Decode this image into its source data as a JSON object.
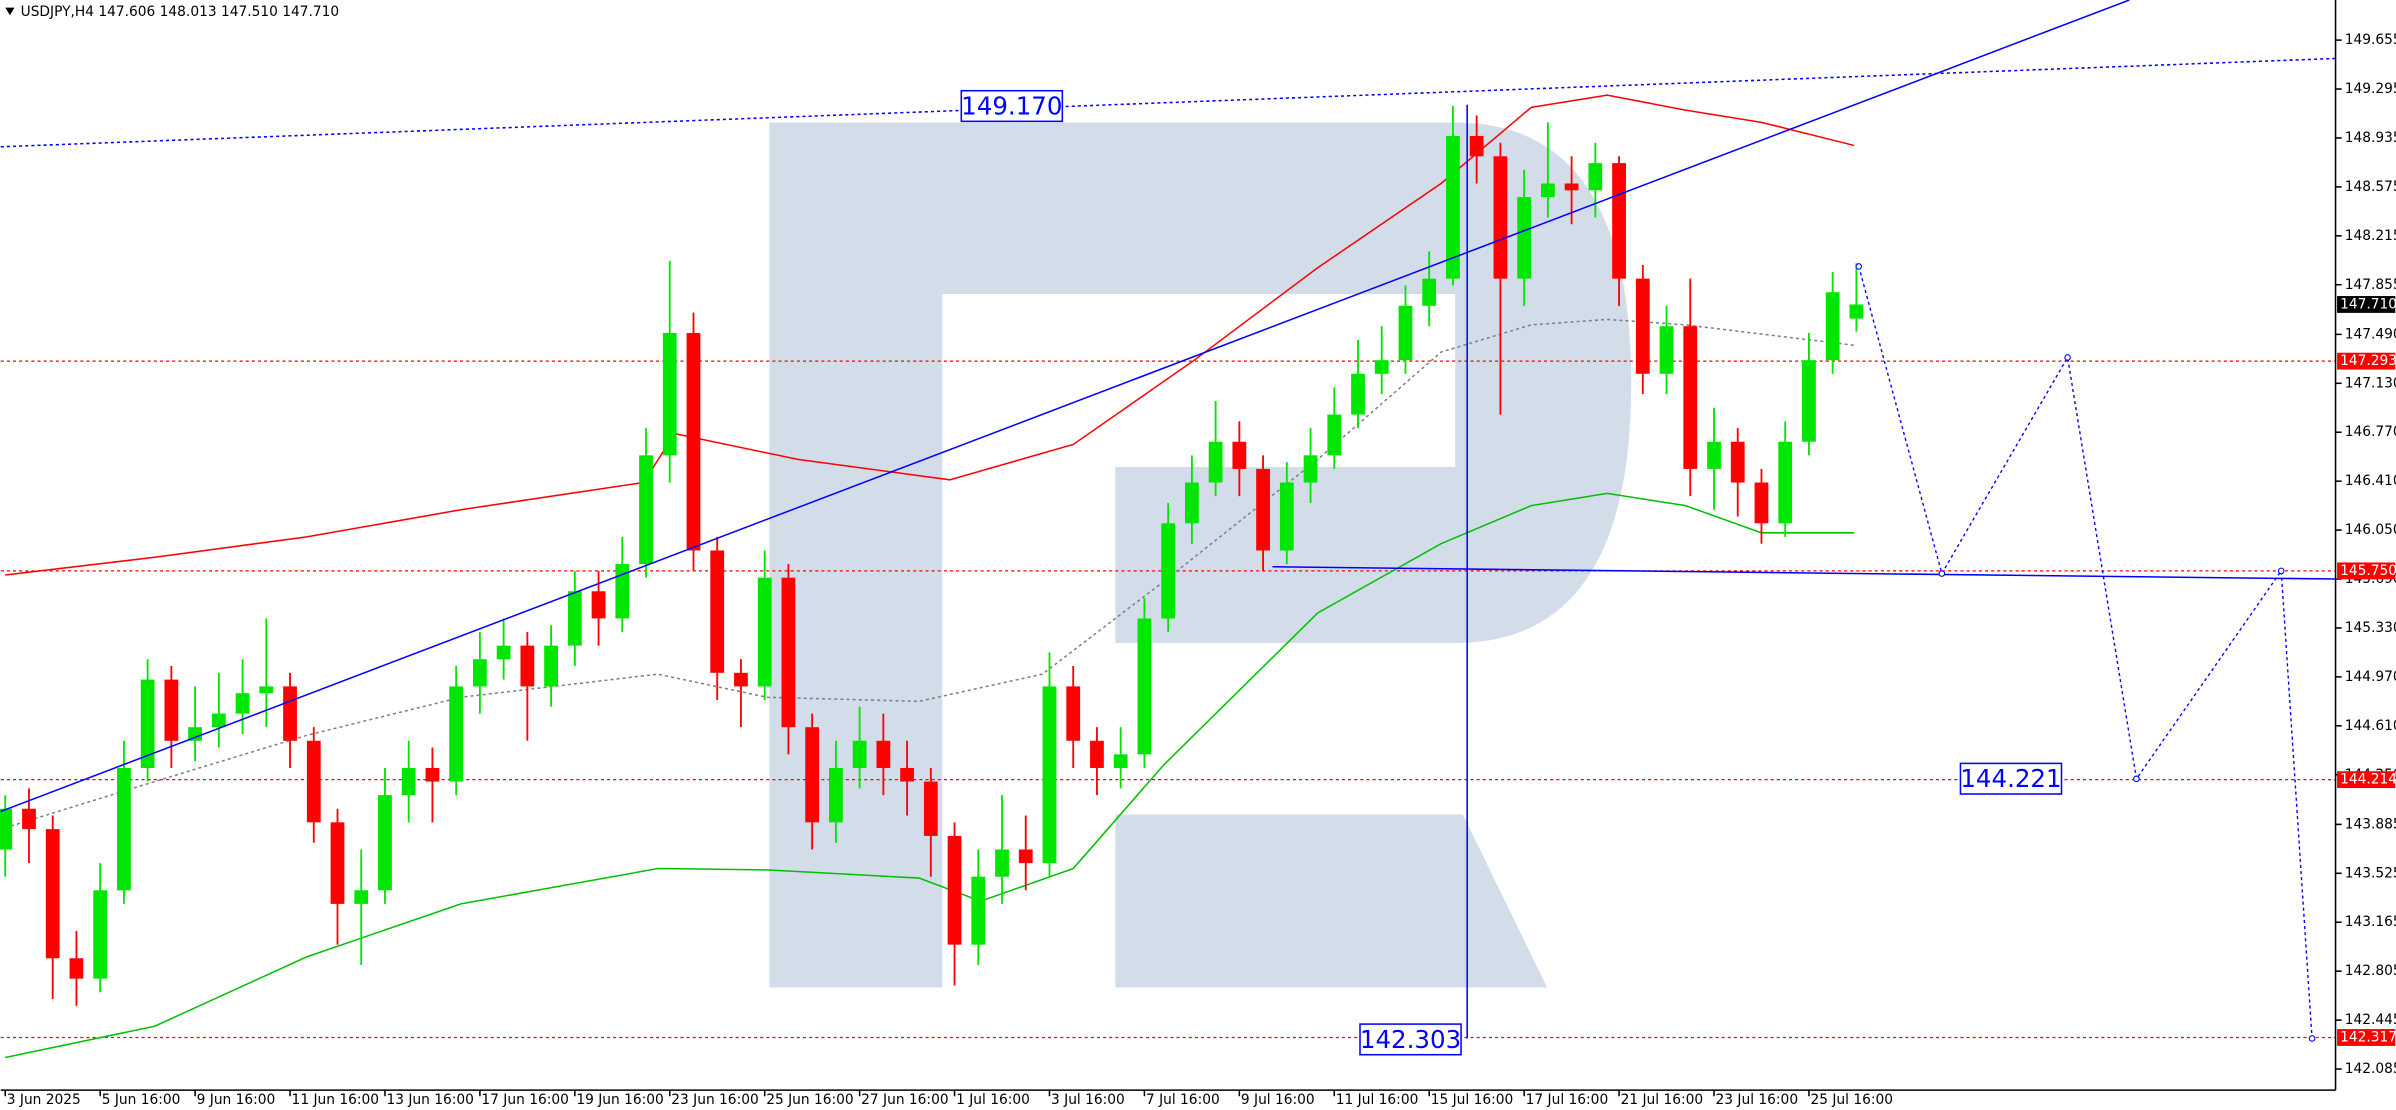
{
  "chart_data": {
    "type": "candlestick",
    "title": "USDJPY,H4  147.606 148.013 147.510 147.710",
    "xlim": [
      -0.19,
      98.19
    ],
    "ylim": [
      141.93,
      149.95
    ],
    "xticks": [
      {
        "value": 0,
        "label": "3 Jun 2025"
      },
      {
        "value": 4,
        "label": "5 Jun 16:00"
      },
      {
        "value": 8,
        "label": "9 Jun 16:00"
      },
      {
        "value": 12,
        "label": "11 Jun 16:00"
      },
      {
        "value": 16,
        "label": "13 Jun 16:00"
      },
      {
        "value": 20,
        "label": "17 Jun 16:00"
      },
      {
        "value": 24,
        "label": "19 Jun 16:00"
      },
      {
        "value": 28,
        "label": "23 Jun 16:00"
      },
      {
        "value": 32,
        "label": "25 Jun 16:00"
      },
      {
        "value": 36,
        "label": "27 Jun 16:00"
      },
      {
        "value": 40,
        "label": "1 Jul 16:00"
      },
      {
        "value": 44,
        "label": "3 Jul 16:00"
      },
      {
        "value": 48,
        "label": "7 Jul 16:00"
      },
      {
        "value": 52,
        "label": "9 Jul 16:00"
      },
      {
        "value": 56,
        "label": "11 Jul 16:00"
      },
      {
        "value": 60,
        "label": "15 Jul 16:00"
      },
      {
        "value": 64,
        "label": "17 Jul 16:00"
      },
      {
        "value": 68,
        "label": "21 Jul 16:00"
      },
      {
        "value": 72,
        "label": "23 Jul 16:00"
      },
      {
        "value": 76,
        "label": "25 Jul 16:00"
      }
    ],
    "yticks": [
      149.655,
      149.295,
      148.935,
      148.575,
      148.215,
      147.855,
      {
        "value": 147.49,
        "label": "147.490"
      },
      {
        "value": 147.13,
        "label": "147.130"
      },
      {
        "value": 146.77,
        "label": "146.770"
      },
      {
        "value": 146.41,
        "label": "146.410"
      },
      {
        "value": 146.05,
        "label": "146.050"
      },
      {
        "value": 145.69,
        "label": "145.690"
      },
      {
        "value": 145.33,
        "label": "145.330"
      },
      {
        "value": 144.97,
        "label": "144.970"
      },
      {
        "value": 144.61,
        "label": "144.610"
      },
      {
        "value": 144.25,
        "label": "144.250"
      },
      143.885,
      143.525,
      143.165,
      142.805,
      142.445,
      142.085
    ],
    "up_color": "#00e600",
    "down_color": "#ff0000",
    "candles": {
      "open": [
        143.7,
        144.0,
        143.85,
        142.9,
        142.75,
        143.4,
        144.3,
        144.95,
        144.5,
        144.6,
        144.7,
        144.85,
        144.9,
        144.5,
        143.9,
        143.3,
        143.4,
        144.1,
        144.3,
        144.2,
        144.9,
        145.1,
        145.2,
        144.9,
        145.2,
        145.6,
        145.4,
        145.8,
        146.6,
        147.5,
        145.9,
        145.0,
        144.9,
        145.7,
        144.6,
        143.9,
        144.3,
        144.5,
        144.3,
        144.2,
        143.8,
        143.0,
        143.5,
        143.7,
        143.6,
        144.9,
        144.5,
        144.3,
        144.4,
        145.4,
        146.1,
        146.4,
        146.7,
        146.5,
        145.9,
        146.4,
        146.6,
        146.9,
        147.2,
        147.3,
        147.7,
        147.9,
        148.95,
        148.8,
        147.9,
        148.5,
        148.6,
        148.55,
        148.75,
        147.9,
        147.2,
        147.55,
        146.5,
        146.7,
        146.4,
        146.1,
        146.7,
        147.3,
        147.606
      ],
      "high": [
        144.1,
        144.15,
        143.95,
        143.1,
        143.6,
        144.5,
        145.1,
        145.05,
        144.9,
        145.0,
        145.1,
        145.4,
        145.0,
        144.6,
        144.0,
        143.7,
        144.3,
        144.5,
        144.45,
        145.05,
        145.3,
        145.4,
        145.3,
        145.35,
        145.75,
        145.75,
        146.0,
        146.8,
        148.03,
        147.65,
        146.0,
        145.1,
        145.9,
        145.8,
        144.7,
        144.5,
        144.75,
        144.7,
        144.5,
        144.3,
        143.9,
        143.7,
        144.1,
        143.95,
        145.15,
        145.05,
        144.6,
        144.6,
        145.55,
        146.25,
        146.6,
        147.0,
        146.85,
        146.6,
        146.55,
        146.8,
        147.1,
        147.45,
        147.55,
        147.85,
        148.1,
        149.17,
        149.1,
        148.9,
        148.7,
        149.05,
        148.8,
        148.9,
        148.8,
        148.0,
        147.7,
        147.9,
        146.95,
        146.8,
        146.5,
        146.85,
        147.5,
        147.95,
        148.013
      ],
      "low": [
        143.5,
        143.6,
        142.6,
        142.55,
        142.65,
        143.3,
        144.2,
        144.3,
        144.35,
        144.45,
        144.55,
        144.6,
        144.3,
        143.75,
        143.0,
        142.85,
        143.3,
        143.9,
        143.9,
        144.1,
        144.7,
        144.95,
        144.5,
        144.75,
        145.05,
        145.2,
        145.3,
        145.7,
        146.4,
        145.75,
        144.8,
        144.6,
        144.8,
        144.4,
        143.7,
        143.75,
        144.15,
        144.1,
        143.95,
        143.5,
        142.7,
        142.85,
        143.3,
        143.4,
        143.5,
        144.3,
        144.1,
        144.15,
        144.3,
        145.3,
        145.95,
        146.3,
        146.3,
        145.75,
        145.8,
        146.25,
        146.5,
        146.8,
        147.05,
        147.2,
        147.55,
        147.85,
        148.6,
        146.9,
        147.7,
        148.35,
        148.3,
        148.35,
        147.7,
        147.05,
        147.05,
        146.3,
        146.2,
        146.15,
        145.95,
        146.0,
        146.6,
        147.2,
        147.51
      ],
      "close": [
        144.0,
        143.85,
        142.9,
        142.75,
        143.4,
        144.3,
        144.95,
        144.5,
        144.6,
        144.7,
        144.85,
        144.9,
        144.5,
        143.9,
        143.3,
        143.4,
        144.1,
        144.3,
        144.2,
        144.9,
        145.1,
        145.2,
        144.9,
        145.2,
        145.6,
        145.4,
        145.8,
        146.6,
        147.5,
        145.9,
        145.0,
        144.9,
        145.7,
        144.6,
        143.9,
        144.3,
        144.5,
        144.3,
        144.2,
        143.8,
        143.0,
        143.5,
        143.7,
        143.6,
        144.9,
        144.5,
        144.3,
        144.4,
        145.4,
        146.1,
        146.4,
        146.7,
        146.5,
        145.9,
        146.4,
        146.6,
        146.9,
        147.2,
        147.3,
        147.7,
        147.9,
        148.95,
        148.8,
        147.9,
        148.5,
        148.6,
        148.55,
        148.75,
        147.9,
        147.2,
        147.55,
        146.5,
        146.7,
        146.4,
        146.1,
        146.7,
        147.3,
        147.8,
        147.71
      ]
    },
    "overlays": [
      {
        "color": "#ff0000",
        "dash": false,
        "x": [
          0,
          6.3,
          12.7,
          19.2,
          26.9,
          28.2,
          33.4,
          39.8,
          45,
          50.1,
          55.3,
          60.5,
          64.3,
          67.5,
          70.8,
          74,
          77.9
        ],
        "values": [
          145.72,
          145.85,
          146.0,
          146.2,
          146.4,
          146.76,
          146.57,
          146.42,
          146.68,
          147.3,
          147.98,
          148.6,
          149.16,
          149.25,
          149.14,
          149.05,
          148.88
        ]
      },
      {
        "color": "#00c000",
        "dash": false,
        "x": [
          0,
          6.3,
          12.7,
          19.2,
          27.5,
          32.1,
          38.5,
          41.1,
          45,
          48.8,
          55.3,
          60.5,
          64.3,
          67.5,
          70.8,
          74,
          77.9
        ],
        "values": [
          142.17,
          142.4,
          142.91,
          143.3,
          143.56,
          143.55,
          143.49,
          143.32,
          143.56,
          144.32,
          145.44,
          145.95,
          146.23,
          146.32,
          146.23,
          146.03,
          146.03
        ]
      },
      {
        "color": "#808080",
        "dash": true,
        "x": [
          0,
          6.3,
          12.7,
          19.2,
          27.5,
          32.1,
          38.5,
          43.7,
          48.8,
          55.3,
          60.5,
          64.3,
          67.5,
          70.8,
          77.9
        ],
        "values": [
          143.86,
          144.2,
          144.54,
          144.82,
          144.99,
          144.82,
          144.79,
          144.99,
          145.67,
          146.57,
          147.36,
          147.56,
          147.6,
          147.56,
          147.41
        ]
      }
    ],
    "levels": [
      147.293,
      {
        "value": 145.75,
        "label": "145.750"
      },
      144.214,
      142.317
    ],
    "level_color": "#ff0000",
    "last_price": {
      "value": 147.71,
      "label": "147.710"
    },
    "trend_lines": [
      {
        "x": [
          -0.19,
          89.5
        ],
        "values": [
          143.98,
          149.95
        ],
        "dash": false
      },
      {
        "x": [
          -0.19,
          98.19
        ],
        "values": [
          148.87,
          149.52
        ],
        "dash": true
      },
      {
        "x": [
          53.4,
          98.19
        ],
        "values": [
          145.78,
          145.69
        ],
        "dash": false
      },
      {
        "x": [
          61.6,
          61.6
        ],
        "values": [
          149.18,
          142.31
        ],
        "dash": false
      }
    ],
    "forecast": {
      "x": [
        78.1,
        81.6,
        86.9,
        89.8,
        95.9,
        97.2
      ],
      "values": [
        147.99,
        145.73,
        147.32,
        144.22,
        145.75,
        142.31
      ]
    },
    "line_color": "#0000ff",
    "price_labels": [
      {
        "x": 44.8,
        "value": 149.17,
        "label": "149.170"
      },
      {
        "x": 61.6,
        "value": 142.303
      },
      {
        "x": 86.9,
        "value": 144.221
      }
    ]
  }
}
